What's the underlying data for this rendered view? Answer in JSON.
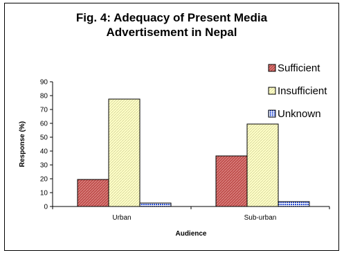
{
  "chart_data": {
    "type": "bar",
    "title_lines": [
      "Fig. 4: Adequacy of Present Media",
      "Advertisement in Nepal"
    ],
    "xlabel": "Audience",
    "ylabel": "Response (%)",
    "ylim": [
      0,
      90
    ],
    "yticks": [
      0,
      10,
      20,
      30,
      40,
      50,
      60,
      70,
      80,
      90
    ],
    "categories": [
      "Urban",
      "Sub-urban"
    ],
    "series": [
      {
        "name": "Sufficient",
        "values": [
          19.5,
          36.5
        ],
        "color": "#c0504d"
      },
      {
        "name": "Insufficient",
        "values": [
          77.5,
          59.5
        ],
        "color": "#ffffc0"
      },
      {
        "name": "Unknown",
        "values": [
          2.5,
          3.5
        ],
        "color": "#3b5bd6"
      }
    ],
    "legend_position": "top-right",
    "grid": false
  }
}
